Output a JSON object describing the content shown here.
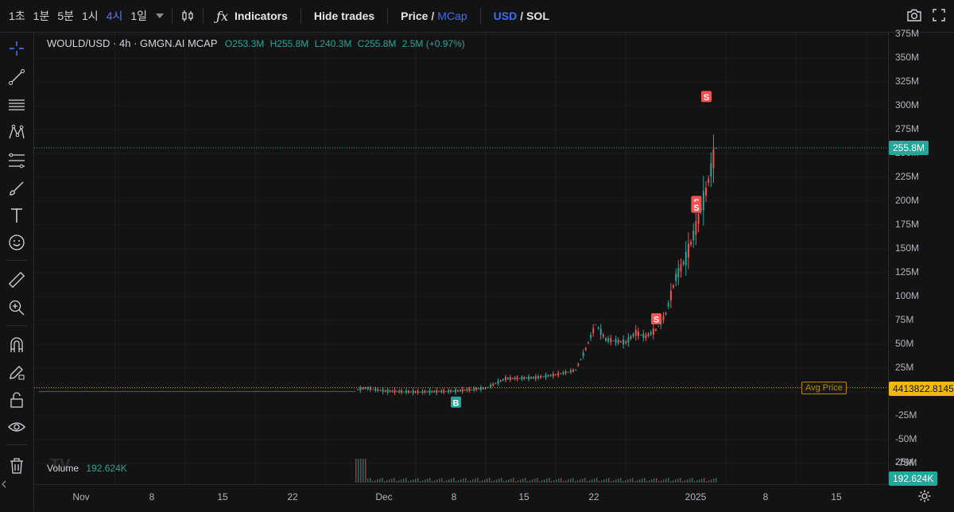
{
  "toolbar": {
    "timeframes": [
      "1초",
      "1분",
      "5분",
      "1시",
      "4시",
      "1일"
    ],
    "active_timeframe": "4시",
    "indicators": "Indicators",
    "hide_trades": "Hide trades",
    "price": "Price",
    "mcap": "MCap",
    "usd": "USD",
    "sol": "SOL",
    "slash": "/"
  },
  "legend": {
    "symbol": "WOULD/USD · 4h · GMGN.AI MCAP",
    "open": "O253.3M",
    "high": "H255.8M",
    "low": "L240.3M",
    "close": "C255.8M",
    "change": "2.5M (+0.97%)"
  },
  "volume": {
    "label": "Volume",
    "value": "192.624K"
  },
  "price_axis": {
    "ticks": [
      "375M",
      "350M",
      "325M",
      "300M",
      "275M",
      "250M",
      "225M",
      "200M",
      "175M",
      "150M",
      "125M",
      "100M",
      "75M",
      "50M",
      "25M",
      "0",
      "-25M",
      "-50M",
      "-75M"
    ],
    "vol_tick": "25M",
    "current_price": "255.8M",
    "avg_price_value": "4413822.8145",
    "avg_price_label": "Avg Price",
    "volume_badge": "192.624K"
  },
  "time_axis": {
    "labels": [
      "Nov",
      "8",
      "15",
      "22",
      "Dec",
      "8",
      "15",
      "22",
      "2025",
      "8",
      "15"
    ]
  },
  "markers": {
    "buy": "B",
    "sell": "S"
  },
  "chart_data": {
    "type": "candlestick",
    "title": "WOULD/USD · 4h · GMGN.AI MCAP",
    "ylim": [
      -75,
      375
    ],
    "y_unit": "M",
    "x_range": [
      "2024-10-26",
      "2025-01-19"
    ],
    "series": [
      {
        "x": [
          "2024-11-25",
          "2024-11-26",
          "2024-11-28",
          "2024-12-01",
          "2024-12-05",
          "2024-12-08",
          "2024-12-10",
          "2024-12-13",
          "2024-12-15",
          "2024-12-17",
          "2024-12-18",
          "2024-12-19",
          "2024-12-20",
          "2024-12-22",
          "2024-12-23",
          "2024-12-24",
          "2024-12-25",
          "2024-12-26",
          "2024-12-27",
          "2024-12-28",
          "2024-12-29",
          "2024-12-30",
          "2024-12-31"
        ],
        "close": [
          2,
          4,
          1,
          0,
          1,
          4,
          14,
          15,
          18,
          23,
          45,
          71,
          55,
          52,
          62,
          58,
          65,
          82,
          120,
          140,
          172,
          210,
          255.8
        ]
      }
    ],
    "current_price": 255.8,
    "avg_price": 4.4138
  }
}
